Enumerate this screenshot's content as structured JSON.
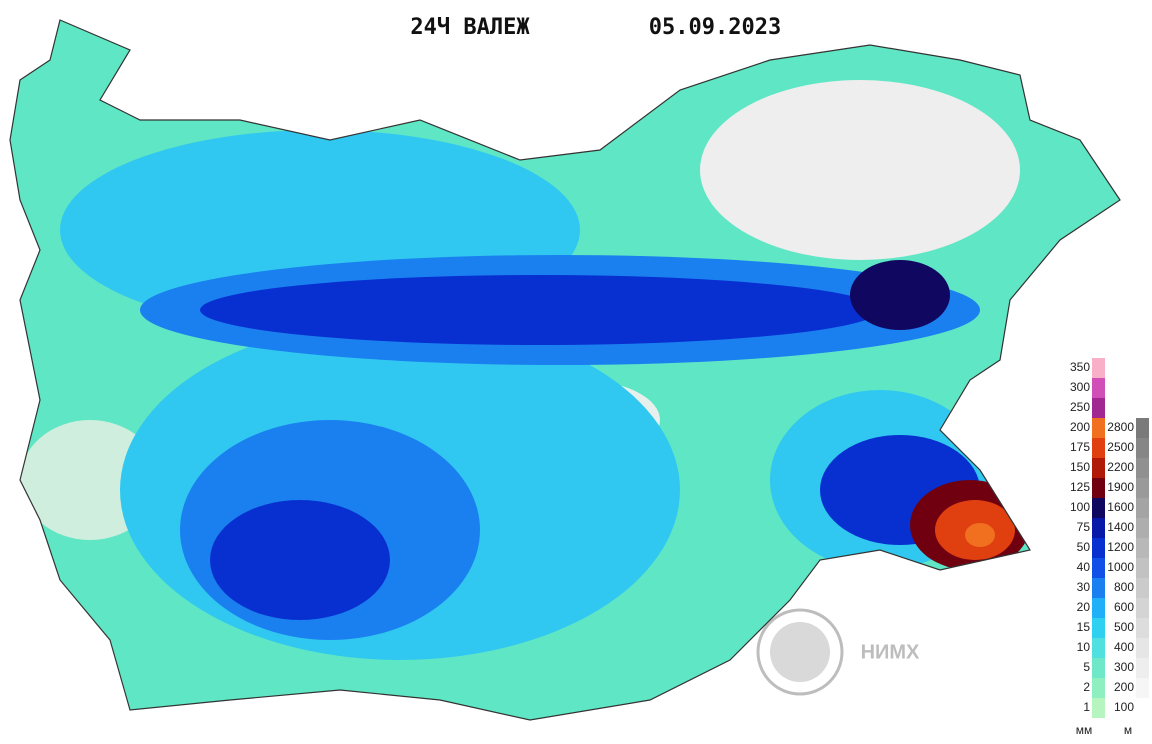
{
  "header": {
    "title": "24Ч ВАЛЕЖ",
    "date": "05.09.2023"
  },
  "legend": {
    "precipitation": {
      "unit": "мм",
      "levels": [
        {
          "label": 1,
          "color": "#b6f5c0"
        },
        {
          "label": 2,
          "color": "#8ef0c0"
        },
        {
          "label": 5,
          "color": "#6ee8c8"
        },
        {
          "label": 10,
          "color": "#50e0e0"
        },
        {
          "label": 15,
          "color": "#30d0f0"
        },
        {
          "label": 20,
          "color": "#20b0f8"
        },
        {
          "label": 30,
          "color": "#1a80f0"
        },
        {
          "label": 40,
          "color": "#1050e8"
        },
        {
          "label": 50,
          "color": "#0830d0"
        },
        {
          "label": 75,
          "color": "#0818a8"
        },
        {
          "label": 100,
          "color": "#100860"
        },
        {
          "label": 125,
          "color": "#700010"
        },
        {
          "label": 150,
          "color": "#b01808"
        },
        {
          "label": 175,
          "color": "#e04010"
        },
        {
          "label": 200,
          "color": "#f07020"
        },
        {
          "label": 250,
          "color": "#a02890"
        },
        {
          "label": 300,
          "color": "#d050b8"
        },
        {
          "label": 350,
          "color": "#f8b0c8"
        }
      ]
    },
    "elevation": {
      "unit": "м",
      "levels": [
        {
          "label": 100,
          "color": "#ffffff"
        },
        {
          "label": 200,
          "color": "#f6f6f6"
        },
        {
          "label": 300,
          "color": "#eeeeee"
        },
        {
          "label": 400,
          "color": "#e6e6e6"
        },
        {
          "label": 500,
          "color": "#dddddd"
        },
        {
          "label": 600,
          "color": "#d4d4d4"
        },
        {
          "label": 800,
          "color": "#cbcbcb"
        },
        {
          "label": 1000,
          "color": "#c2c2c2"
        },
        {
          "label": 1200,
          "color": "#b8b8b8"
        },
        {
          "label": 1400,
          "color": "#aeaeae"
        },
        {
          "label": 1600,
          "color": "#a4a4a4"
        },
        {
          "label": 1900,
          "color": "#9a9a9a"
        },
        {
          "label": 2200,
          "color": "#909090"
        },
        {
          "label": 2500,
          "color": "#868686"
        },
        {
          "label": 2800,
          "color": "#7a7a7a"
        }
      ]
    }
  },
  "logo": {
    "text": "НИМХ"
  }
}
